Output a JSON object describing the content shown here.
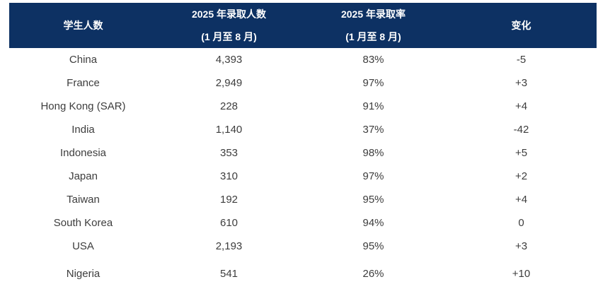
{
  "colors": {
    "header_bg": "#0d3163",
    "header_text": "#ffffff",
    "body_text": "#3d3d3d"
  },
  "table": {
    "header": {
      "col1": "学生人数",
      "col2_line1": "2025 年录取人数",
      "col2_line2": "(1 月至 8 月)",
      "col3_line1": "2025 年录取率",
      "col3_line2": "(1 月至 8 月)",
      "col4": "变化"
    },
    "rows": [
      {
        "country": "China",
        "admitted": "4,393",
        "rate": "83%",
        "change": "-5"
      },
      {
        "country": "France",
        "admitted": "2,949",
        "rate": "97%",
        "change": "+3"
      },
      {
        "country": "Hong Kong (SAR)",
        "admitted": "228",
        "rate": "91%",
        "change": "+4"
      },
      {
        "country": "India",
        "admitted": "1,140",
        "rate": "37%",
        "change": "-42"
      },
      {
        "country": "Indonesia",
        "admitted": "353",
        "rate": "98%",
        "change": "+5"
      },
      {
        "country": "Japan",
        "admitted": "310",
        "rate": "97%",
        "change": "+2"
      },
      {
        "country": "Taiwan",
        "admitted": "192",
        "rate": "95%",
        "change": "+4"
      },
      {
        "country": "South Korea",
        "admitted": "610",
        "rate": "94%",
        "change": "0"
      },
      {
        "country": "USA",
        "admitted": "2,193",
        "rate": "95%",
        "change": "+3"
      },
      {
        "country": "Nigeria",
        "admitted": "541",
        "rate": "26%",
        "change": "+10"
      }
    ]
  },
  "chart_data": {
    "type": "table",
    "title": "",
    "columns": [
      "学生人数",
      "2025 年录取人数 (1 月至 8 月)",
      "2025 年录取率 (1 月至 8 月)",
      "变化"
    ],
    "rows": [
      [
        "China",
        4393,
        "83%",
        -5
      ],
      [
        "France",
        2949,
        "97%",
        3
      ],
      [
        "Hong Kong (SAR)",
        228,
        "91%",
        4
      ],
      [
        "India",
        1140,
        "37%",
        -42
      ],
      [
        "Indonesia",
        353,
        "98%",
        5
      ],
      [
        "Japan",
        310,
        "97%",
        2
      ],
      [
        "Taiwan",
        192,
        "95%",
        4
      ],
      [
        "South Korea",
        610,
        "94%",
        0
      ],
      [
        "USA",
        2193,
        "95%",
        3
      ],
      [
        "Nigeria",
        541,
        "26%",
        10
      ]
    ]
  }
}
